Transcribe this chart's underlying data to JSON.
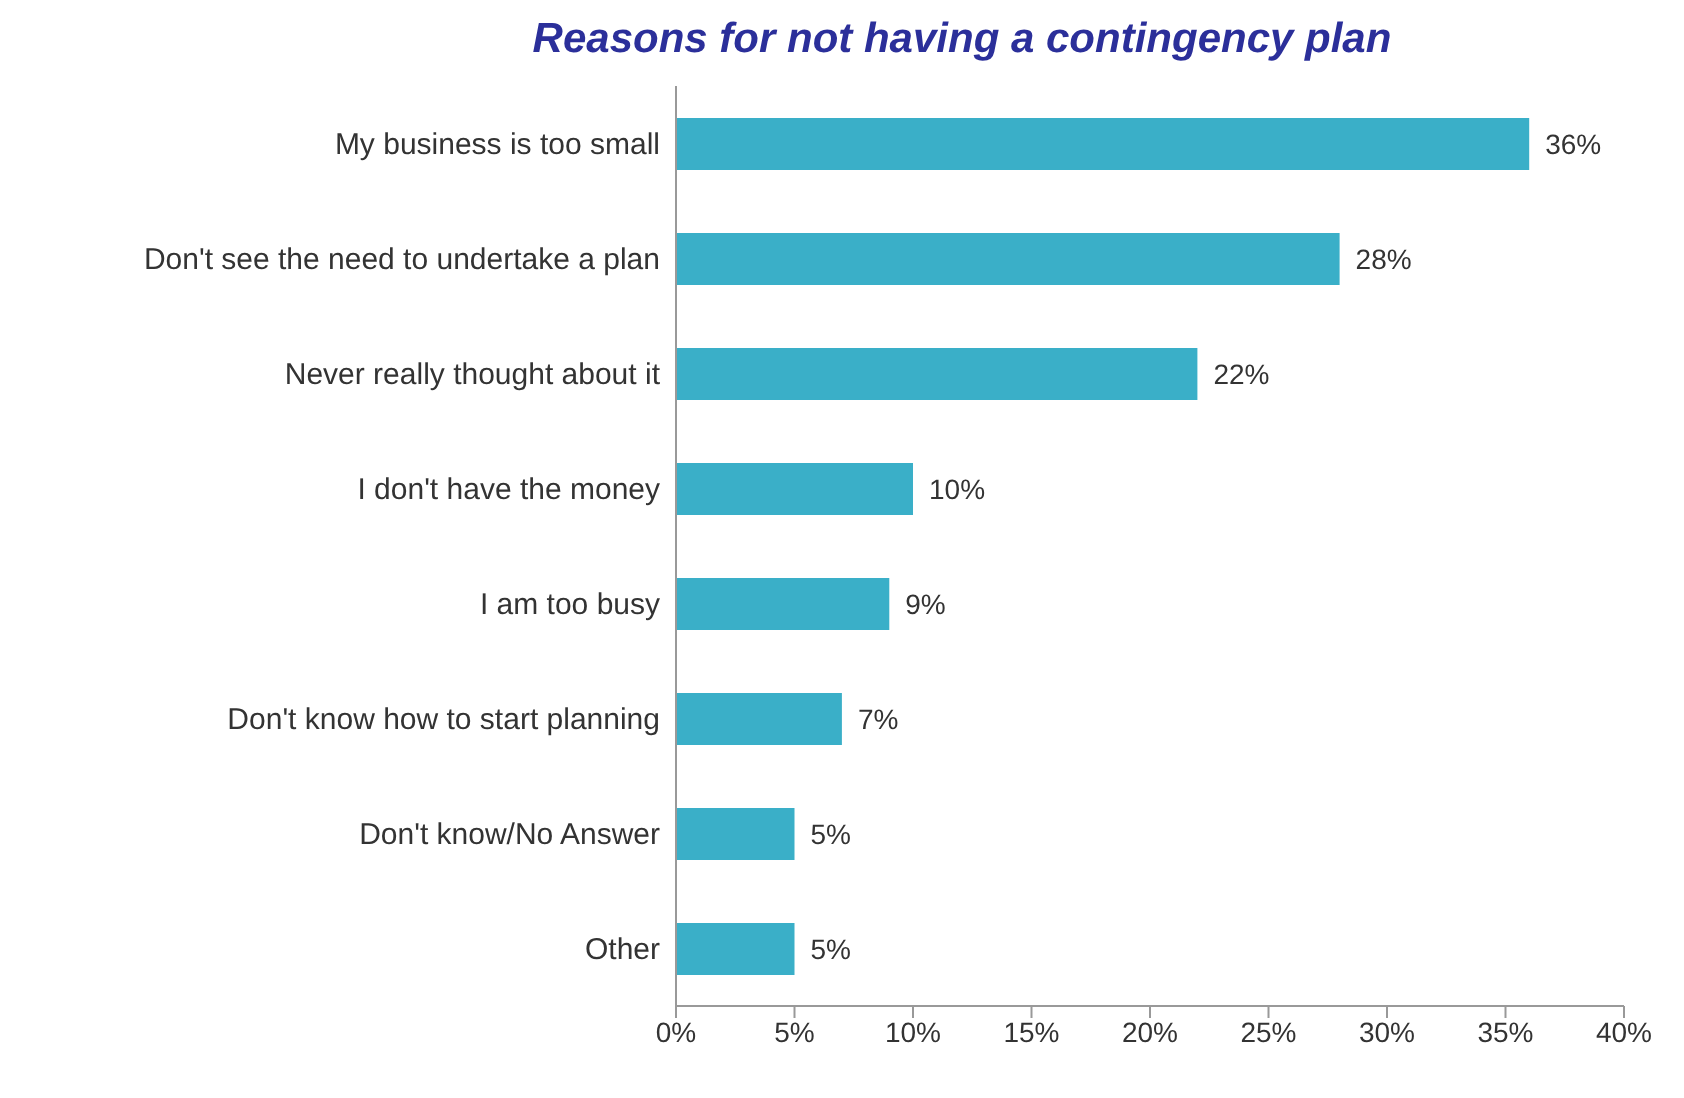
{
  "chart_data": {
    "type": "bar",
    "orientation": "horizontal",
    "title": "Reasons for not having a contingency plan",
    "categories": [
      "My business is too small",
      "Don't see the need to undertake a plan",
      "Never really thought about it",
      "I don't have the money",
      "I am too busy",
      "Don't know how to start planning",
      "Don't know/No Answer",
      "Other"
    ],
    "values": [
      36,
      28,
      22,
      10,
      9,
      7,
      5,
      5
    ],
    "value_labels": [
      "36%",
      "28%",
      "22%",
      "10%",
      "9%",
      "7%",
      "5%",
      "5%"
    ],
    "color": "#3aafc8",
    "xlim": [
      0,
      40
    ],
    "xticks": [
      {
        "value": 0,
        "label": "0%"
      },
      {
        "value": 5,
        "label": "5%"
      },
      {
        "value": 10,
        "label": "10%"
      },
      {
        "value": 15,
        "label": "15%"
      },
      {
        "value": 20,
        "label": "20%"
      },
      {
        "value": 25,
        "label": "25%"
      },
      {
        "value": 30,
        "label": "30%"
      },
      {
        "value": 35,
        "label": "35%"
      },
      {
        "value": 40,
        "label": "40%"
      }
    ],
    "grid": false
  }
}
